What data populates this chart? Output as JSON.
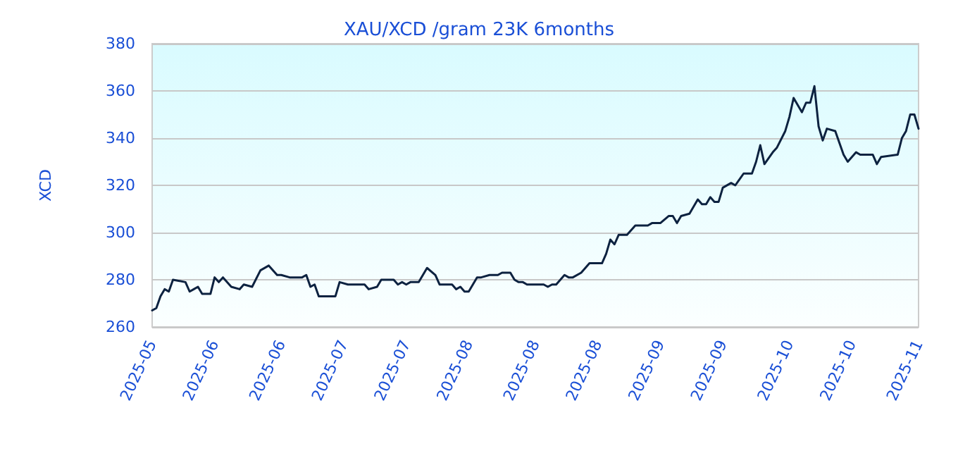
{
  "chart_data": {
    "type": "line",
    "title": "XAU/XCD /gram 23K 6months",
    "ylabel": "XCD",
    "x": [
      "2025-05-06",
      "2025-05-07",
      "2025-05-08",
      "2025-05-09",
      "2025-05-10",
      "2025-05-11",
      "2025-05-14",
      "2025-05-15",
      "2025-05-16",
      "2025-05-17",
      "2025-05-18",
      "2025-05-20",
      "2025-05-21",
      "2025-05-22",
      "2025-05-23",
      "2025-05-25",
      "2025-05-27",
      "2025-05-28",
      "2025-05-30",
      "2025-06-01",
      "2025-06-03",
      "2025-06-05",
      "2025-06-06",
      "2025-06-08",
      "2025-06-11",
      "2025-06-12",
      "2025-06-13",
      "2025-06-14",
      "2025-06-15",
      "2025-06-19",
      "2025-06-20",
      "2025-06-22",
      "2025-06-26",
      "2025-06-27",
      "2025-06-29",
      "2025-06-30",
      "2025-07-03",
      "2025-07-04",
      "2025-07-05",
      "2025-07-06",
      "2025-07-07",
      "2025-07-09",
      "2025-07-11",
      "2025-07-13",
      "2025-07-14",
      "2025-07-17",
      "2025-07-18",
      "2025-07-19",
      "2025-07-20",
      "2025-07-21",
      "2025-07-23",
      "2025-07-24",
      "2025-07-26",
      "2025-07-28",
      "2025-07-29",
      "2025-07-31",
      "2025-08-01",
      "2025-08-02",
      "2025-08-03",
      "2025-08-04",
      "2025-08-08",
      "2025-08-09",
      "2025-08-10",
      "2025-08-11",
      "2025-08-13",
      "2025-08-14",
      "2025-08-15",
      "2025-08-17",
      "2025-08-19",
      "2025-08-22",
      "2025-08-23",
      "2025-08-24",
      "2025-08-25",
      "2025-08-26",
      "2025-08-28",
      "2025-08-30",
      "2025-08-31",
      "2025-09-02",
      "2025-09-03",
      "2025-09-05",
      "2025-09-07",
      "2025-09-08",
      "2025-09-09",
      "2025-09-10",
      "2025-09-12",
      "2025-09-14",
      "2025-09-15",
      "2025-09-16",
      "2025-09-17",
      "2025-09-18",
      "2025-09-19",
      "2025-09-20",
      "2025-09-22",
      "2025-09-23",
      "2025-09-25",
      "2025-09-27",
      "2025-09-28",
      "2025-09-29",
      "2025-09-30",
      "2025-10-02",
      "2025-10-03",
      "2025-10-05",
      "2025-10-06",
      "2025-10-07",
      "2025-10-09",
      "2025-10-10",
      "2025-10-11",
      "2025-10-12",
      "2025-10-13",
      "2025-10-14",
      "2025-10-15",
      "2025-10-17",
      "2025-10-19",
      "2025-10-20",
      "2025-10-22",
      "2025-10-23",
      "2025-10-26",
      "2025-10-27",
      "2025-10-28",
      "2025-11-01",
      "2025-11-02",
      "2025-11-03",
      "2025-11-04",
      "2025-11-05",
      "2025-11-06"
    ],
    "series": [
      {
        "color": "#0d2240",
        "values": [
          267,
          268,
          273,
          276,
          275,
          280,
          279,
          275,
          276,
          277,
          274,
          274,
          281,
          279,
          281,
          277,
          276,
          278,
          277,
          284,
          286,
          282,
          282,
          281,
          281,
          282,
          277,
          278,
          273,
          273,
          279,
          278,
          278,
          276,
          277,
          280,
          280,
          278,
          279,
          278,
          279,
          279,
          285,
          282,
          278,
          278,
          276,
          277,
          275,
          275,
          281,
          281,
          282,
          282,
          283,
          283,
          280,
          279,
          279,
          278,
          278,
          277,
          278,
          278,
          282,
          281,
          281,
          283,
          287,
          287,
          291,
          297,
          295,
          299,
          299,
          303,
          303,
          303,
          304,
          304,
          307,
          307,
          304,
          307,
          308,
          314,
          312,
          312,
          315,
          313,
          313,
          319,
          321,
          320,
          325,
          325,
          330,
          337,
          329,
          334,
          336,
          343,
          349,
          357,
          351,
          355,
          355,
          362,
          345,
          339,
          344,
          343,
          333,
          330,
          334,
          333,
          333,
          329,
          332,
          333,
          340,
          343,
          350,
          350,
          344
        ]
      }
    ],
    "xlim": [
      "2025-05-06",
      "2025-11-06"
    ],
    "xticks": [
      {
        "value": "2025-05-06",
        "label": "2025-05"
      },
      {
        "value": "2025-05-21",
        "label": "2025-06"
      },
      {
        "value": "2025-06-06",
        "label": "2025-06"
      },
      {
        "value": "2025-06-21",
        "label": "2025-07"
      },
      {
        "value": "2025-07-06",
        "label": "2025-07"
      },
      {
        "value": "2025-07-21",
        "label": "2025-08"
      },
      {
        "value": "2025-08-06",
        "label": "2025-08"
      },
      {
        "value": "2025-08-21",
        "label": "2025-08"
      },
      {
        "value": "2025-09-05",
        "label": "2025-09"
      },
      {
        "value": "2025-09-20",
        "label": "2025-09"
      },
      {
        "value": "2025-10-06",
        "label": "2025-10"
      },
      {
        "value": "2025-10-21",
        "label": "2025-10"
      },
      {
        "value": "2025-11-06",
        "label": "2025-11"
      }
    ],
    "ylim": [
      260,
      380
    ],
    "yticks": [
      260,
      280,
      300,
      320,
      340,
      360,
      380
    ],
    "grid": "y",
    "marker": "none",
    "line_style": "solid"
  }
}
